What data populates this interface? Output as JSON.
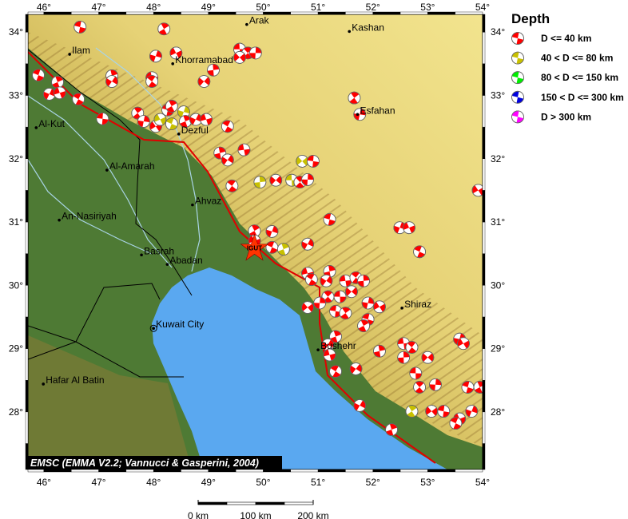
{
  "map": {
    "lon_range": [
      45.71,
      54.0
    ],
    "lat_range": [
      27.09,
      34.28
    ],
    "lon_ticks": [
      46,
      47,
      48,
      49,
      50,
      51,
      52,
      53,
      54
    ],
    "lat_ticks": [
      28,
      29,
      30,
      31,
      32,
      33,
      34
    ],
    "lon_tick_labels": [
      "46°",
      "47°",
      "48°",
      "49°",
      "50°",
      "51°",
      "52°",
      "53°",
      "54°"
    ],
    "lat_tick_labels": [
      "28°",
      "29°",
      "30°",
      "31°",
      "32°",
      "33°",
      "34°"
    ],
    "colors": {
      "sea": "#5aa8f0",
      "lowland": "#4e7a34",
      "mountain": "#c8b04e",
      "plateau": "#eede86",
      "fault": "#e00000",
      "border": "#000000",
      "river": "#a9d4e6"
    }
  },
  "credit": "EMSC (EMMA V2.2; Vannucci & Gasperini, 2004)",
  "station": {
    "label": "IGUT",
    "lon": 49.84,
    "lat": 30.58,
    "color": "#ff3300"
  },
  "cities": [
    {
      "name": "Arak",
      "lon": 49.7,
      "lat": 34.12
    },
    {
      "name": "Kashan",
      "lon": 51.57,
      "lat": 34.01
    },
    {
      "name": "Ilam",
      "lon": 46.47,
      "lat": 33.65
    },
    {
      "name": "Khorramabad",
      "lon": 48.35,
      "lat": 33.5
    },
    {
      "name": "Al-Kut",
      "lon": 45.86,
      "lat": 32.49
    },
    {
      "name": "Dezful",
      "lon": 48.46,
      "lat": 32.39
    },
    {
      "name": "Esfahan",
      "lon": 51.72,
      "lat": 32.7
    },
    {
      "name": "Al-Amarah",
      "lon": 47.15,
      "lat": 31.82
    },
    {
      "name": "Ahvaz",
      "lon": 48.71,
      "lat": 31.27
    },
    {
      "name": "An-Nasiriyah",
      "lon": 46.28,
      "lat": 31.03
    },
    {
      "name": "Basrah",
      "lon": 47.78,
      "lat": 30.48
    },
    {
      "name": "Abadan",
      "lon": 48.25,
      "lat": 30.33
    },
    {
      "name": "Kuwait City",
      "lon": 48.0,
      "lat": 29.32
    },
    {
      "name": "Shiraz",
      "lon": 52.53,
      "lat": 29.64
    },
    {
      "name": "Bushehr",
      "lon": 51.0,
      "lat": 28.98
    },
    {
      "name": "Hafar Al Batin",
      "lon": 45.99,
      "lat": 28.44
    }
  ],
  "legend": {
    "title": "Depth",
    "items": [
      {
        "label": "D <= 40 km",
        "color": "#ff0000"
      },
      {
        "label": "40 < D <= 80 km",
        "color": "#c8c000"
      },
      {
        "label": "80 < D <= 150 km",
        "color": "#00ee00"
      },
      {
        "label": "150 < D <= 300 km",
        "color": "#0000dd"
      },
      {
        "label": "D > 300 km",
        "color": "#ff00ff"
      }
    ]
  },
  "scale_bar": {
    "labels": [
      "0 km",
      "100 km",
      "200 km"
    ]
  },
  "events": [
    [
      46.66,
      34.08,
      0
    ],
    [
      48.19,
      34.05,
      0
    ],
    [
      48.04,
      33.62,
      0
    ],
    [
      48.41,
      33.67,
      0
    ],
    [
      45.9,
      33.32,
      0
    ],
    [
      46.25,
      33.21,
      0
    ],
    [
      46.1,
      33.02,
      0
    ],
    [
      46.29,
      33.04,
      0
    ],
    [
      46.63,
      32.94,
      0
    ],
    [
      47.24,
      33.31,
      0
    ],
    [
      47.24,
      33.22,
      0
    ],
    [
      47.97,
      33.28,
      0
    ],
    [
      47.97,
      33.22,
      0
    ],
    [
      49.09,
      33.4,
      0
    ],
    [
      48.92,
      33.22,
      0
    ],
    [
      49.57,
      33.73,
      0
    ],
    [
      49.72,
      33.67,
      0
    ],
    [
      49.86,
      33.67,
      0
    ],
    [
      49.57,
      33.6,
      0
    ],
    [
      47.07,
      32.63,
      0
    ],
    [
      47.71,
      32.72,
      0
    ],
    [
      47.82,
      32.59,
      0
    ],
    [
      48.04,
      32.51,
      0
    ],
    [
      48.26,
      32.77,
      0
    ],
    [
      48.33,
      32.83,
      0
    ],
    [
      48.55,
      32.74,
      1
    ],
    [
      48.12,
      32.62,
      1
    ],
    [
      48.33,
      32.55,
      1
    ],
    [
      48.58,
      32.59,
      0
    ],
    [
      48.77,
      32.62,
      0
    ],
    [
      48.96,
      32.62,
      0
    ],
    [
      49.35,
      32.51,
      0
    ],
    [
      49.21,
      32.09,
      0
    ],
    [
      49.35,
      31.98,
      0
    ],
    [
      49.65,
      32.14,
      0
    ],
    [
      49.43,
      31.57,
      0
    ],
    [
      49.94,
      31.63,
      1
    ],
    [
      50.23,
      31.66,
      0
    ],
    [
      50.52,
      31.66,
      1
    ],
    [
      50.67,
      31.63,
      0
    ],
    [
      50.81,
      31.67,
      0
    ],
    [
      50.71,
      31.96,
      1
    ],
    [
      50.91,
      31.96,
      0
    ],
    [
      51.66,
      32.96,
      0
    ],
    [
      51.76,
      32.7,
      0
    ],
    [
      53.92,
      31.5,
      0
    ],
    [
      51.21,
      31.04,
      0
    ],
    [
      49.84,
      30.86,
      0
    ],
    [
      50.16,
      30.85,
      0
    ],
    [
      49.84,
      30.7,
      0
    ],
    [
      50.16,
      30.6,
      0
    ],
    [
      50.37,
      30.57,
      1
    ],
    [
      50.81,
      30.65,
      0
    ],
    [
      50.81,
      30.19,
      0
    ],
    [
      50.88,
      30.09,
      0
    ],
    [
      51.21,
      30.22,
      0
    ],
    [
      51.15,
      30.07,
      0
    ],
    [
      51.5,
      30.07,
      0
    ],
    [
      51.69,
      30.12,
      0
    ],
    [
      51.83,
      30.07,
      0
    ],
    [
      51.61,
      29.9,
      0
    ],
    [
      51.4,
      29.82,
      0
    ],
    [
      51.18,
      29.82,
      0
    ],
    [
      51.03,
      29.72,
      0
    ],
    [
      50.81,
      29.65,
      0
    ],
    [
      51.32,
      29.59,
      0
    ],
    [
      51.5,
      29.56,
      0
    ],
    [
      51.91,
      29.72,
      0
    ],
    [
      52.12,
      29.66,
      0
    ],
    [
      51.91,
      29.46,
      0
    ],
    [
      51.83,
      29.36,
      0
    ],
    [
      52.49,
      30.91,
      0
    ],
    [
      52.66,
      30.91,
      0
    ],
    [
      52.85,
      30.53,
      0
    ],
    [
      51.32,
      29.19,
      0
    ],
    [
      51.18,
      29.06,
      0
    ],
    [
      51.21,
      28.9,
      0
    ],
    [
      51.32,
      28.64,
      0
    ],
    [
      52.12,
      28.96,
      0
    ],
    [
      51.69,
      28.68,
      0
    ],
    [
      52.56,
      29.08,
      0
    ],
    [
      52.71,
      29.02,
      0
    ],
    [
      52.56,
      28.86,
      0
    ],
    [
      53.0,
      28.86,
      0
    ],
    [
      52.78,
      28.61,
      0
    ],
    [
      52.85,
      28.39,
      0
    ],
    [
      53.14,
      28.43,
      0
    ],
    [
      53.07,
      28.01,
      0
    ],
    [
      53.29,
      28.01,
      0
    ],
    [
      52.71,
      28.01,
      1
    ],
    [
      53.58,
      29.15,
      0
    ],
    [
      53.65,
      29.08,
      0
    ],
    [
      53.73,
      28.39,
      0
    ],
    [
      53.95,
      28.39,
      0
    ],
    [
      53.8,
      28.01,
      0
    ],
    [
      53.58,
      27.89,
      0
    ],
    [
      53.51,
      27.82,
      0
    ],
    [
      52.34,
      27.72,
      0
    ],
    [
      51.76,
      28.1,
      0
    ]
  ]
}
